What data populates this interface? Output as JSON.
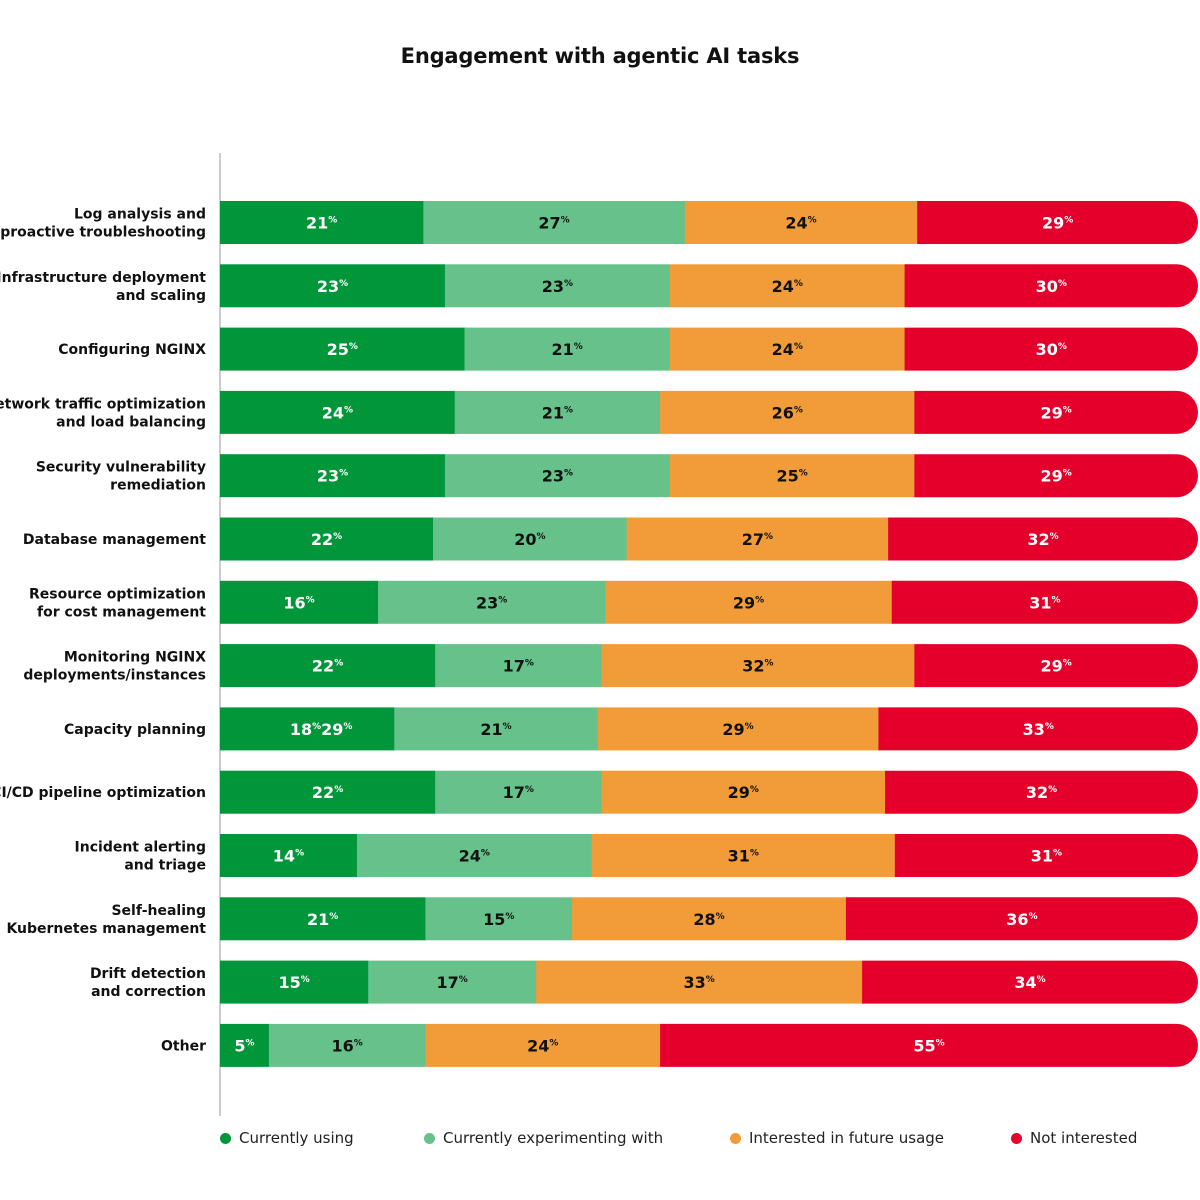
{
  "chart_data": {
    "type": "bar",
    "orientation": "horizontal",
    "stacked": true,
    "title": "Engagement with agentic AI tasks",
    "unit": "%",
    "categories": [
      [
        "Log analysis and",
        "proactive troubleshooting"
      ],
      [
        "Infrastructure deployment",
        "and scaling"
      ],
      [
        "Configuring NGINX"
      ],
      [
        "Network traffic optimization",
        "and load balancing"
      ],
      [
        "Security vulnerability",
        "remediation"
      ],
      [
        "Database management"
      ],
      [
        "Resource optimization",
        "for cost management"
      ],
      [
        "Monitoring NGINX",
        "deployments/instances"
      ],
      [
        "Capacity planning"
      ],
      [
        "CI/CD pipeline optimization"
      ],
      [
        "Incident alerting",
        "and triage"
      ],
      [
        "Self-healing",
        "Kubernetes management"
      ],
      [
        "Drift detection",
        "and correction"
      ],
      [
        "Other"
      ]
    ],
    "series": [
      {
        "name": "Currently using",
        "color": "#009639",
        "text_color": "#ffffff",
        "values": [
          21,
          23,
          25,
          24,
          23,
          22,
          16,
          22,
          18,
          22,
          14,
          21,
          15,
          5
        ]
      },
      {
        "name": "Currently experimenting with",
        "color": "#66c28a",
        "text_color": "#111111",
        "values": [
          27,
          23,
          21,
          21,
          23,
          20,
          23,
          17,
          21,
          17,
          24,
          15,
          17,
          16
        ]
      },
      {
        "name": "Interested in future usage",
        "color": "#f19c38",
        "text_color": "#111111",
        "values": [
          24,
          24,
          24,
          26,
          25,
          27,
          29,
          32,
          29,
          29,
          31,
          28,
          33,
          24
        ]
      },
      {
        "name": "Not interested",
        "color": "#e4002b",
        "text_color": "#ffffff",
        "values": [
          29,
          30,
          30,
          29,
          29,
          32,
          31,
          29,
          33,
          32,
          31,
          36,
          34,
          55
        ]
      }
    ],
    "annotations": [
      {
        "category_index": 8,
        "series_index": 0,
        "text": "29",
        "note": "overlapping stray label printed next to 18%"
      }
    ],
    "legend_position": "bottom",
    "grid": false
  }
}
